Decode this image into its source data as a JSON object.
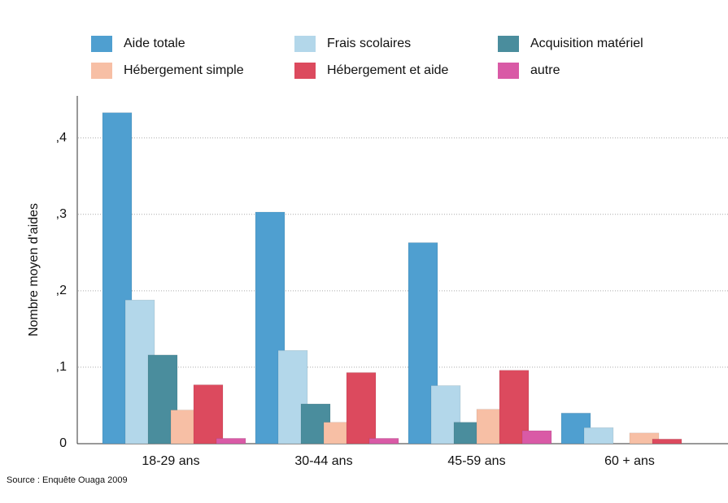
{
  "chart_data": {
    "type": "bar",
    "y_label": "Nombre moyen d'aides",
    "source": "Source : Enquête Ouaga 2009",
    "categories": [
      "18-29 ans",
      "30-44 ans",
      "45-59 ans",
      "60 + ans"
    ],
    "series": [
      {
        "name": "Aide totale",
        "color": "#4f9fd0",
        "values": [
          0.433,
          0.303,
          0.263,
          0.04
        ]
      },
      {
        "name": "Frais scolaires",
        "color": "#b3d7ea",
        "values": [
          0.188,
          0.122,
          0.076,
          0.021
        ]
      },
      {
        "name": "Acquisition matériel",
        "color": "#4a8d9d",
        "values": [
          0.116,
          0.052,
          0.028,
          0
        ]
      },
      {
        "name": "Hébergement simple",
        "color": "#f7bfa5",
        "values": [
          0.044,
          0.028,
          0.045,
          0.014
        ]
      },
      {
        "name": "Hébergement et aide",
        "color": "#dc4a5e",
        "values": [
          0.077,
          0.093,
          0.096,
          0.006
        ]
      },
      {
        "name": "autre",
        "color": "#d95aa6",
        "values": [
          0.007,
          0.007,
          0.017,
          0
        ]
      }
    ],
    "ylim": [
      0,
      0.455
    ],
    "yticks": [
      0,
      {
        "value": 0.1,
        "label": ",1"
      },
      {
        "value": 0.2,
        "label": ",2"
      },
      {
        "value": 0.3,
        "label": ",3"
      },
      {
        "value": 0.4,
        "label": ",4"
      }
    ],
    "grid": true
  }
}
